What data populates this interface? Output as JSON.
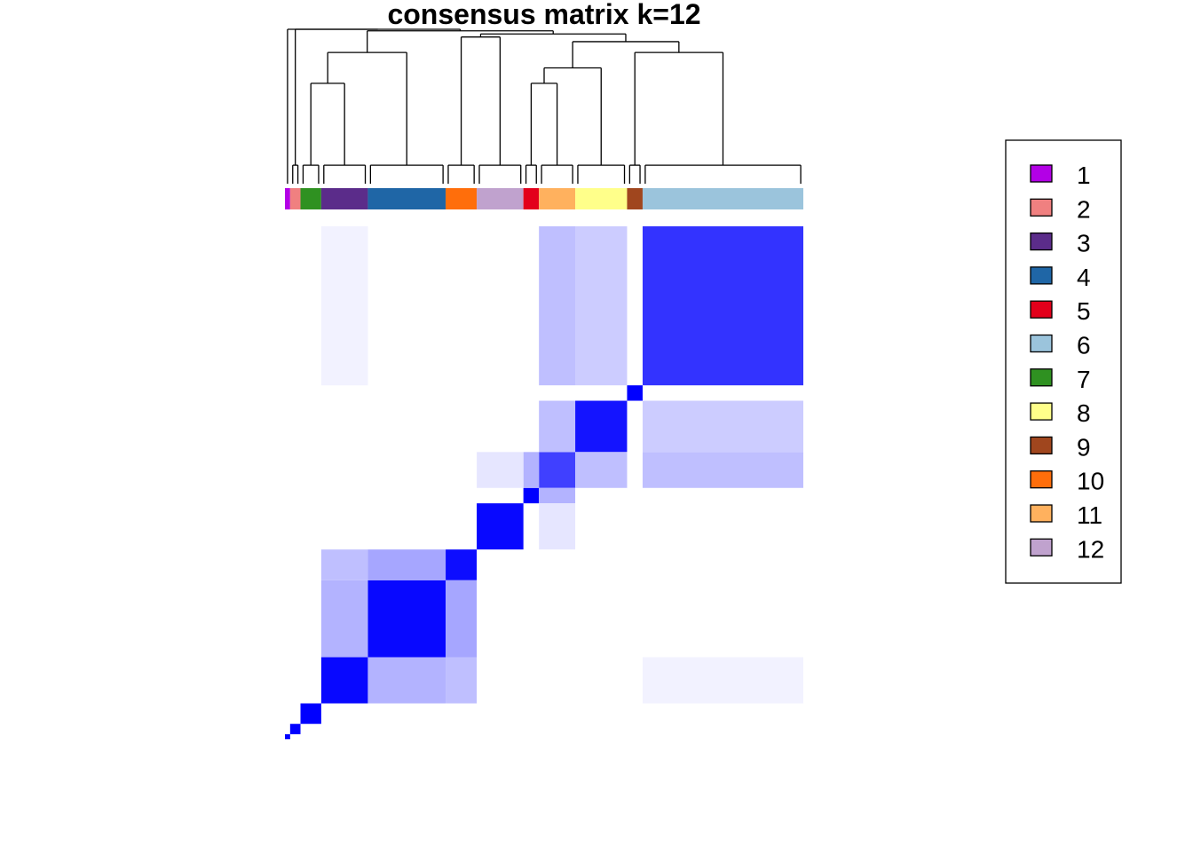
{
  "chart_data": {
    "type": "heatmap",
    "title": "consensus matrix k=12",
    "value_range": [
      0,
      1
    ],
    "colors": {
      "low": "#FFFFFF",
      "high": "#0000FF"
    },
    "legend": {
      "placement": "right",
      "entries": [
        {
          "label": "1",
          "color": "#B300E6"
        },
        {
          "label": "2",
          "color": "#F08080"
        },
        {
          "label": "3",
          "color": "#5B2C8A"
        },
        {
          "label": "4",
          "color": "#1F66A6"
        },
        {
          "label": "5",
          "color": "#E3001B"
        },
        {
          "label": "6",
          "color": "#9BC4DC"
        },
        {
          "label": "7",
          "color": "#2F9121"
        },
        {
          "label": "8",
          "color": "#FFFF8A"
        },
        {
          "label": "9",
          "color": "#A0461E"
        },
        {
          "label": "10",
          "color": "#FF6E0B"
        },
        {
          "label": "11",
          "color": "#FFB15E"
        },
        {
          "label": "12",
          "color": "#C0A2CE"
        }
      ]
    },
    "cluster_order": [
      "1",
      "2",
      "7",
      "3",
      "4",
      "10",
      "12",
      "5",
      "11",
      "8",
      "9",
      "6"
    ],
    "cluster_sizes": [
      1,
      2,
      4,
      9,
      15,
      6,
      9,
      3,
      7,
      10,
      3,
      31
    ],
    "blocks": [
      {
        "row": "1",
        "col": "1",
        "value": 1.0
      },
      {
        "row": "2",
        "col": "2",
        "value": 1.0
      },
      {
        "row": "7",
        "col": "7",
        "value": 1.0
      },
      {
        "row": "3",
        "col": "3",
        "value": 0.97
      },
      {
        "row": "4",
        "col": "4",
        "value": 0.97
      },
      {
        "row": "10",
        "col": "10",
        "value": 0.95
      },
      {
        "row": "12",
        "col": "12",
        "value": 0.97
      },
      {
        "row": "5",
        "col": "5",
        "value": 1.0
      },
      {
        "row": "11",
        "col": "11",
        "value": 0.75
      },
      {
        "row": "8",
        "col": "8",
        "value": 0.92
      },
      {
        "row": "9",
        "col": "9",
        "value": 1.0
      },
      {
        "row": "6",
        "col": "6",
        "value": 0.8
      },
      {
        "row": "3",
        "col": "4",
        "value": 0.3
      },
      {
        "row": "4",
        "col": "3",
        "value": 0.3
      },
      {
        "row": "4",
        "col": "10",
        "value": 0.35
      },
      {
        "row": "10",
        "col": "4",
        "value": 0.35
      },
      {
        "row": "3",
        "col": "10",
        "value": 0.25
      },
      {
        "row": "10",
        "col": "3",
        "value": 0.25
      },
      {
        "row": "11",
        "col": "5",
        "value": 0.3
      },
      {
        "row": "5",
        "col": "11",
        "value": 0.3
      },
      {
        "row": "11",
        "col": "8",
        "value": 0.25
      },
      {
        "row": "8",
        "col": "11",
        "value": 0.25
      },
      {
        "row": "8",
        "col": "6",
        "value": 0.2
      },
      {
        "row": "6",
        "col": "8",
        "value": 0.2
      },
      {
        "row": "11",
        "col": "6",
        "value": 0.25
      },
      {
        "row": "6",
        "col": "11",
        "value": 0.25
      },
      {
        "row": "12",
        "col": "11",
        "value": 0.1
      },
      {
        "row": "11",
        "col": "12",
        "value": 0.1
      },
      {
        "row": "3",
        "col": "6",
        "value": 0.05
      },
      {
        "row": "6",
        "col": "3",
        "value": 0.05
      }
    ]
  }
}
